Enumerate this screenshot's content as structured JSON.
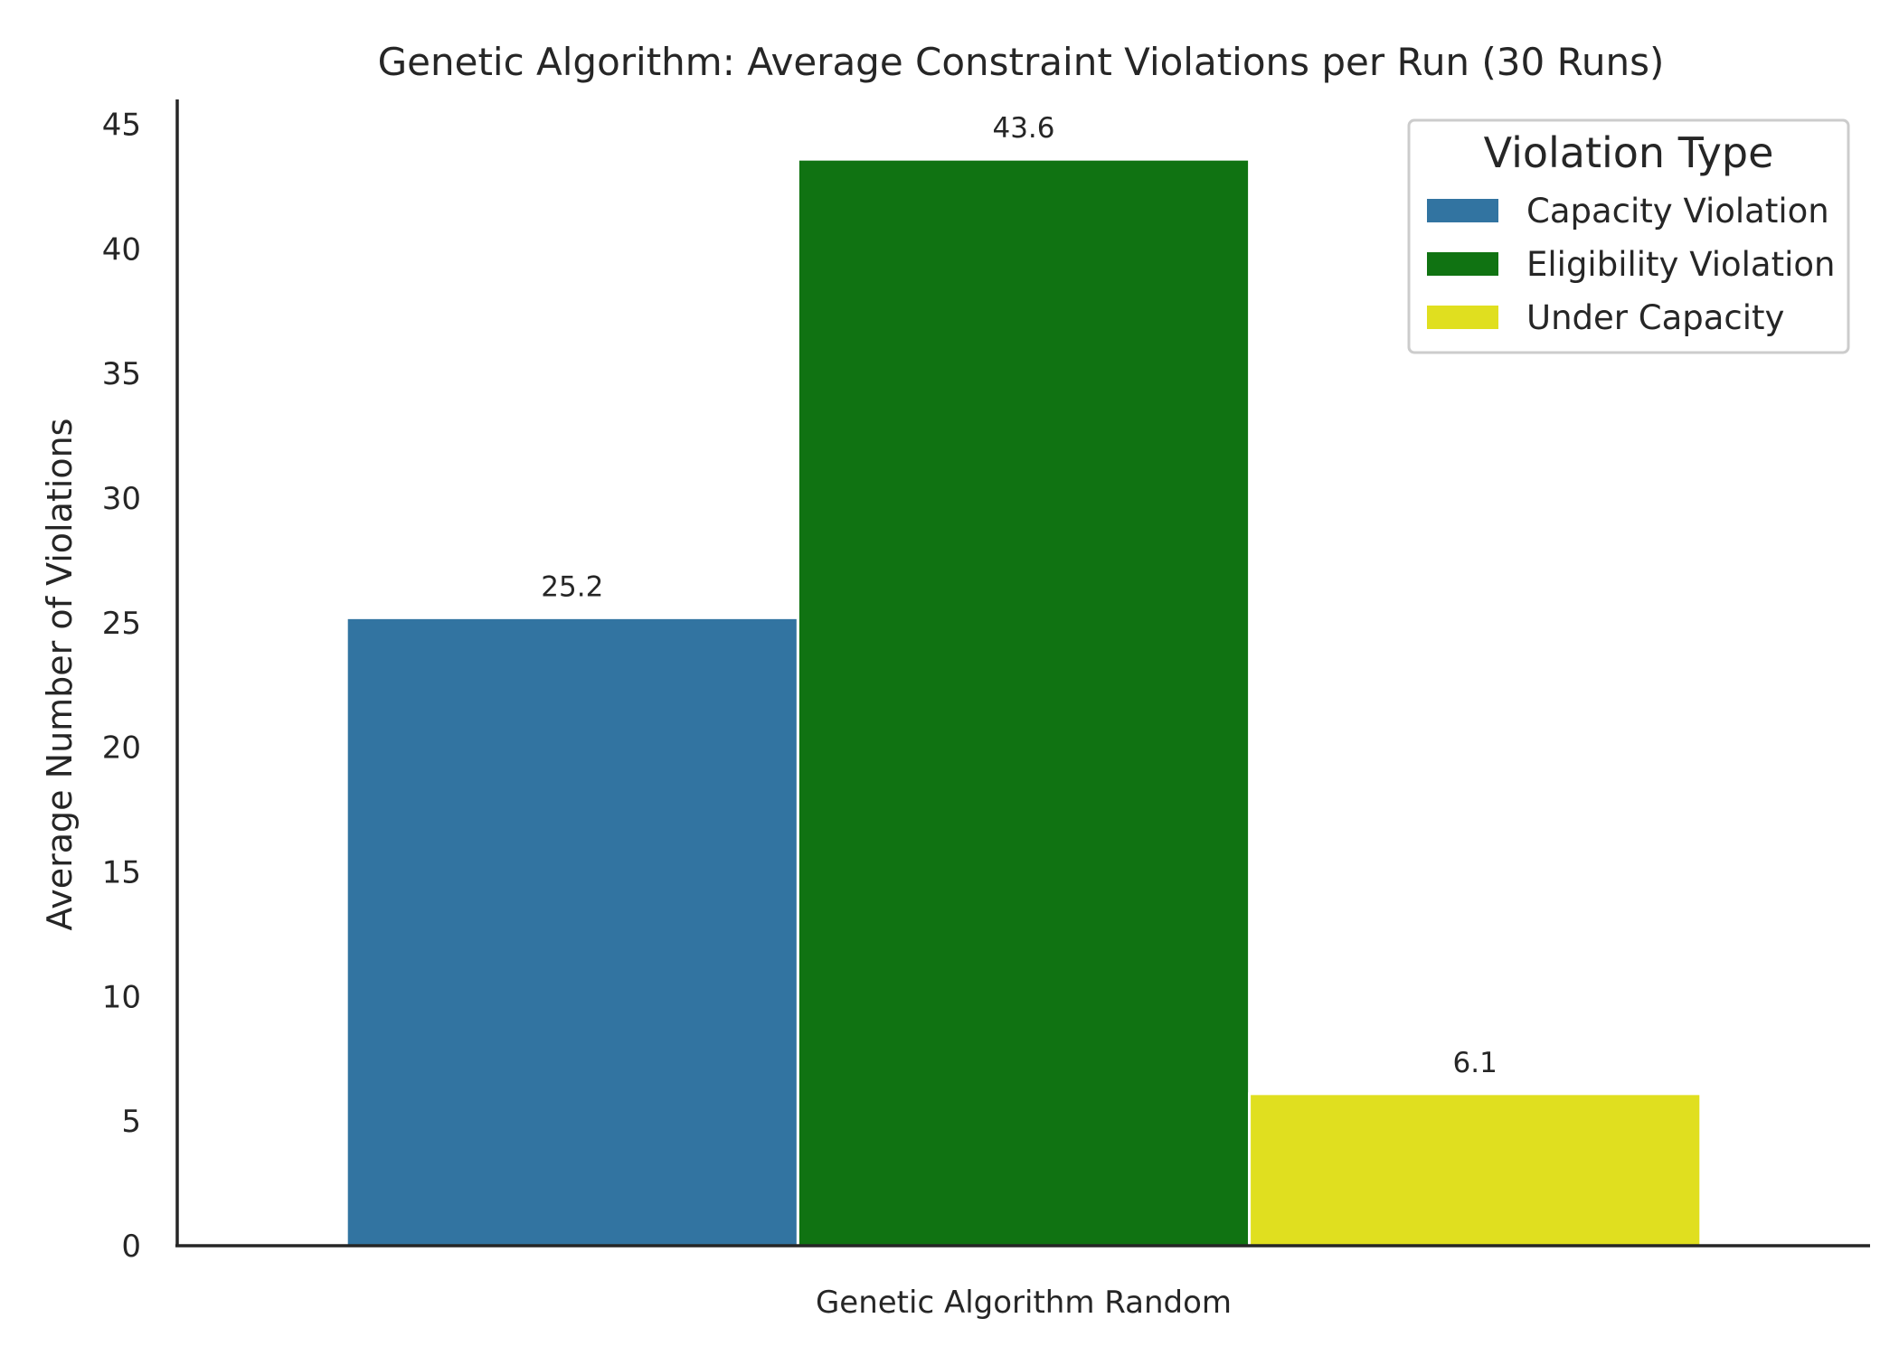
{
  "chart_data": {
    "type": "bar",
    "title": "Genetic Algorithm: Average Constraint Violations per Run (30 Runs)",
    "xlabel": "",
    "ylabel": "Average Number of Violations",
    "categories": [
      "Genetic Algorithm Random"
    ],
    "ylim": [
      0,
      46
    ],
    "yticks": [
      0,
      5,
      10,
      15,
      20,
      25,
      30,
      35,
      40,
      45
    ],
    "grid": false,
    "legend": {
      "title": "Violation Type",
      "placement": "top-right"
    },
    "series": [
      {
        "name": "Capacity Violation",
        "values": [
          25.2
        ],
        "label": "25.2",
        "color": "#3274a1"
      },
      {
        "name": "Eligibility Violation",
        "values": [
          43.6
        ],
        "label": "43.6",
        "color": "#107312"
      },
      {
        "name": "Under Capacity",
        "values": [
          6.1
        ],
        "label": "6.1",
        "color": "#e0df1f"
      }
    ]
  }
}
